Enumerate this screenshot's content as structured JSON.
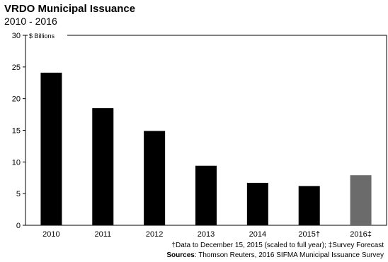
{
  "chart_data": {
    "type": "bar",
    "title": "VRDO Municipal Issuance",
    "subtitle": "2010 - 2016",
    "ylabel": "$ Billions",
    "categories": [
      "2010",
      "2011",
      "2012",
      "2013",
      "2014",
      "2015†",
      "2016‡"
    ],
    "values": [
      24.1,
      18.5,
      14.9,
      9.4,
      6.7,
      6.2,
      7.9
    ],
    "ylim": [
      0,
      30
    ],
    "yticks": [
      0,
      5,
      10,
      15,
      20,
      25,
      30
    ],
    "grid": false,
    "colors": [
      "#000000",
      "#000000",
      "#000000",
      "#000000",
      "#000000",
      "#000000",
      "#6b6b6b"
    ]
  },
  "footnote": "†Data to December 15, 2015 (scaled to full year); ‡Survey Forecast",
  "sources": {
    "label": "Sources",
    "text": ": Thomson Reuters, 2016 SIFMA Municipal Issuance Survey"
  }
}
